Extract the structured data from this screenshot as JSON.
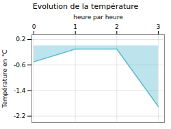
{
  "chart_data": {
    "type": "area",
    "title": "Evolution de la température",
    "xlabel": "heure par heure",
    "ylabel": "Température en °C",
    "x": [
      0,
      1,
      2,
      3
    ],
    "values": [
      -0.5,
      -0.1,
      -0.1,
      -1.9
    ],
    "color": "#5bbcd0",
    "xlim": [
      -0.05,
      3.15
    ],
    "xticks": [
      0,
      1,
      2,
      3
    ],
    "ylim": [
      -2.4,
      0.35
    ],
    "yticks": [
      0.2,
      -0.6,
      -1.4,
      -2.2
    ],
    "grid": true
  }
}
